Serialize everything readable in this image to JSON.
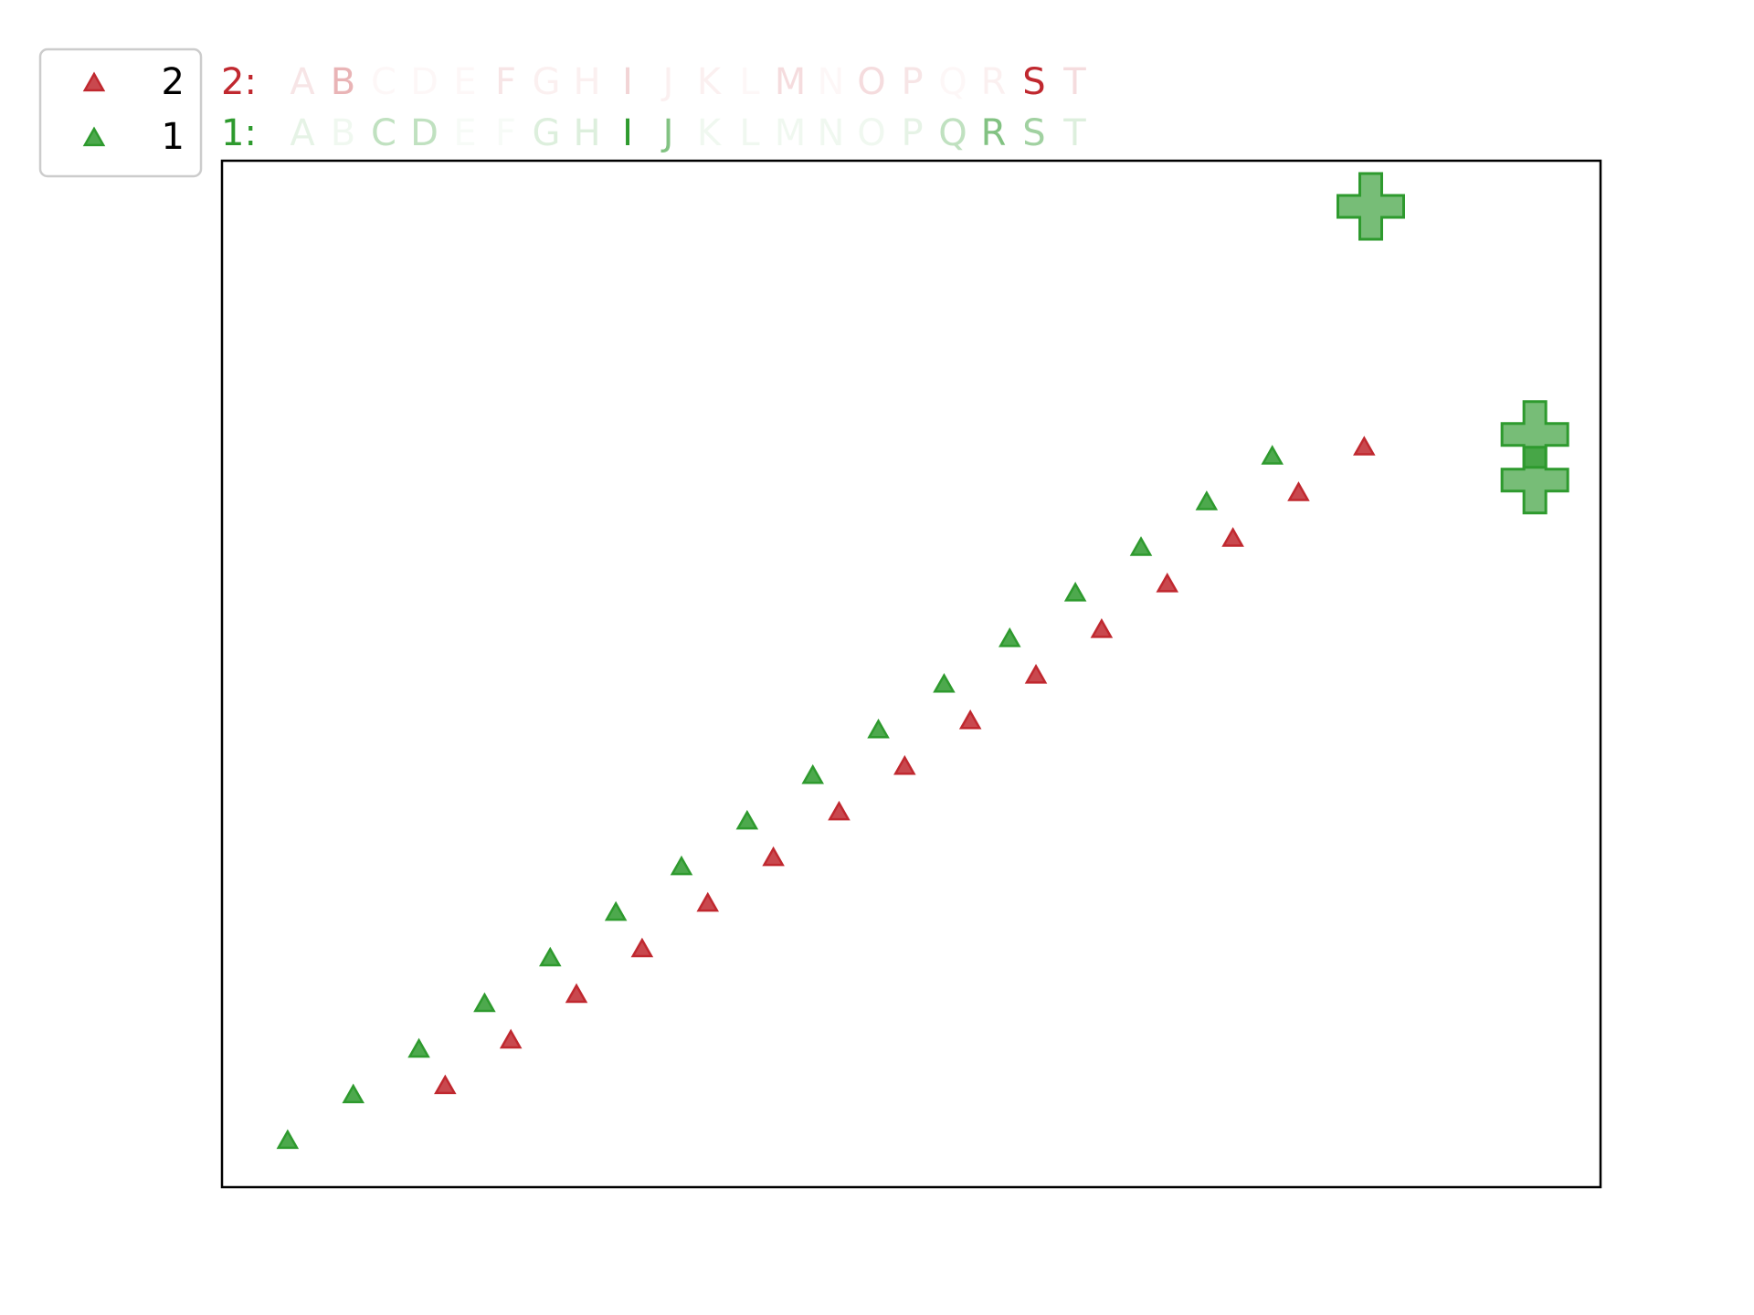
{
  "chart_data": {
    "type": "scatter",
    "title": "",
    "xlabel": "",
    "ylabel": "",
    "grid": false,
    "axis_ticks": false,
    "xlim": [
      0,
      21
    ],
    "ylim": [
      0,
      22.5
    ],
    "legend": {
      "placement": "top-left (outside plot)",
      "entries": [
        {
          "label": "2",
          "color": "#c0282f",
          "marker": "triangle"
        },
        {
          "label": "1",
          "color": "#2e9a2e",
          "marker": "triangle"
        }
      ]
    },
    "letters": [
      "A",
      "B",
      "C",
      "D",
      "E",
      "F",
      "G",
      "H",
      "I",
      "J",
      "K",
      "L",
      "M",
      "N",
      "O",
      "P",
      "Q",
      "R",
      "S",
      "T"
    ],
    "series": [
      {
        "name": "2",
        "color": "#c0282f",
        "row_label": "2:",
        "points": [
          {
            "x": 3.4,
            "y": 2.2
          },
          {
            "x": 4.4,
            "y": 3.2
          },
          {
            "x": 5.4,
            "y": 4.2
          },
          {
            "x": 6.4,
            "y": 5.2
          },
          {
            "x": 7.4,
            "y": 6.2
          },
          {
            "x": 8.4,
            "y": 7.2
          },
          {
            "x": 9.4,
            "y": 8.2
          },
          {
            "x": 10.4,
            "y": 9.2
          },
          {
            "x": 11.4,
            "y": 10.2
          },
          {
            "x": 12.4,
            "y": 11.2
          },
          {
            "x": 13.4,
            "y": 12.2
          },
          {
            "x": 14.4,
            "y": 13.2
          },
          {
            "x": 15.4,
            "y": 14.2
          },
          {
            "x": 16.4,
            "y": 15.2
          },
          {
            "x": 17.4,
            "y": 16.2
          }
        ],
        "letter_opacity": [
          0.12,
          0.35,
          0.04,
          0.04,
          0.04,
          0.12,
          0.07,
          0.07,
          0.2,
          0.07,
          0.07,
          0.04,
          0.16,
          0.04,
          0.16,
          0.12,
          0.04,
          0.07,
          1.0,
          0.16
        ]
      },
      {
        "name": "1",
        "color": "#2e9a2e",
        "row_label": "1:",
        "points": [
          {
            "x": 1.0,
            "y": 1.0
          },
          {
            "x": 2.0,
            "y": 2.0
          },
          {
            "x": 3.0,
            "y": 3.0
          },
          {
            "x": 4.0,
            "y": 4.0
          },
          {
            "x": 5.0,
            "y": 5.0
          },
          {
            "x": 6.0,
            "y": 6.0
          },
          {
            "x": 7.0,
            "y": 7.0
          },
          {
            "x": 8.0,
            "y": 8.0
          },
          {
            "x": 9.0,
            "y": 9.0
          },
          {
            "x": 10.0,
            "y": 10.0
          },
          {
            "x": 11.0,
            "y": 11.0
          },
          {
            "x": 12.0,
            "y": 12.0
          },
          {
            "x": 13.0,
            "y": 13.0
          },
          {
            "x": 14.0,
            "y": 14.0
          },
          {
            "x": 15.0,
            "y": 15.0
          },
          {
            "x": 16.0,
            "y": 16.0
          }
        ],
        "letter_opacity": [
          0.12,
          0.07,
          0.3,
          0.3,
          0.04,
          0.04,
          0.16,
          0.16,
          1.0,
          0.6,
          0.07,
          0.07,
          0.07,
          0.07,
          0.07,
          0.12,
          0.3,
          0.6,
          0.45,
          0.16
        ]
      }
    ],
    "highlight_markers": {
      "marker": "plus",
      "color": "#2e9a2e",
      "points": [
        {
          "x": 17.5,
          "y": 21.5
        },
        {
          "x": 20.0,
          "y": 16.5
        },
        {
          "x": 20.0,
          "y": 15.5
        }
      ]
    }
  }
}
